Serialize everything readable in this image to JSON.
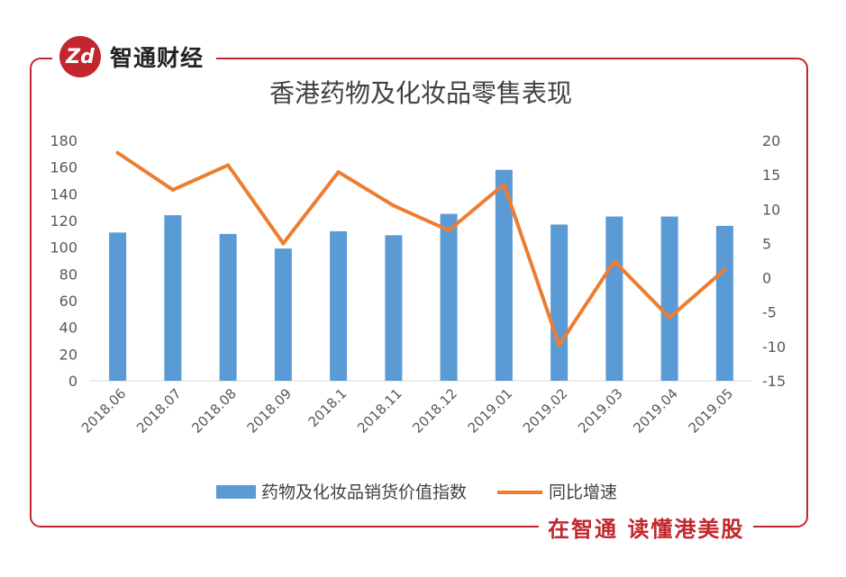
{
  "brand": {
    "logo_text": "Zd",
    "name": "智通财经"
  },
  "slogan": "在智通  读懂港美股",
  "colors": {
    "frame": "#c1272d",
    "bar": "#5b9bd5",
    "line": "#ed7d31"
  },
  "chart_data": {
    "type": "bar+line",
    "title": "香港药物及化妆品零售表现",
    "categories": [
      "2018.06",
      "2018.07",
      "2018.08",
      "2018.09",
      "2018.1",
      "2018.11",
      "2018.12",
      "2019.01",
      "2019.02",
      "2019.03",
      "2019.04",
      "2019.05"
    ],
    "series": [
      {
        "name": "药物及化妆品销货价值指数",
        "type": "bar",
        "axis": "left",
        "values": [
          111,
          124,
          110,
          99,
          112,
          109,
          125,
          158,
          117,
          123,
          123,
          116
        ]
      },
      {
        "name": "同比增速",
        "type": "line",
        "axis": "right",
        "values": [
          18.2,
          12.8,
          16.4,
          5.0,
          15.4,
          10.5,
          6.9,
          13.6,
          -9.8,
          2.4,
          -5.8,
          1.2
        ]
      }
    ],
    "y_left": {
      "min": 0,
      "max": 180,
      "step": 20,
      "ticks": [
        "0",
        "20",
        "40",
        "60",
        "80",
        "100",
        "120",
        "140",
        "160",
        "180"
      ]
    },
    "y_right": {
      "min": -15,
      "max": 20,
      "step": 5,
      "ticks": [
        "-15",
        "-10",
        "-5",
        "0",
        "5",
        "10",
        "15",
        "20"
      ]
    },
    "grid": false,
    "legend": "bottom"
  }
}
